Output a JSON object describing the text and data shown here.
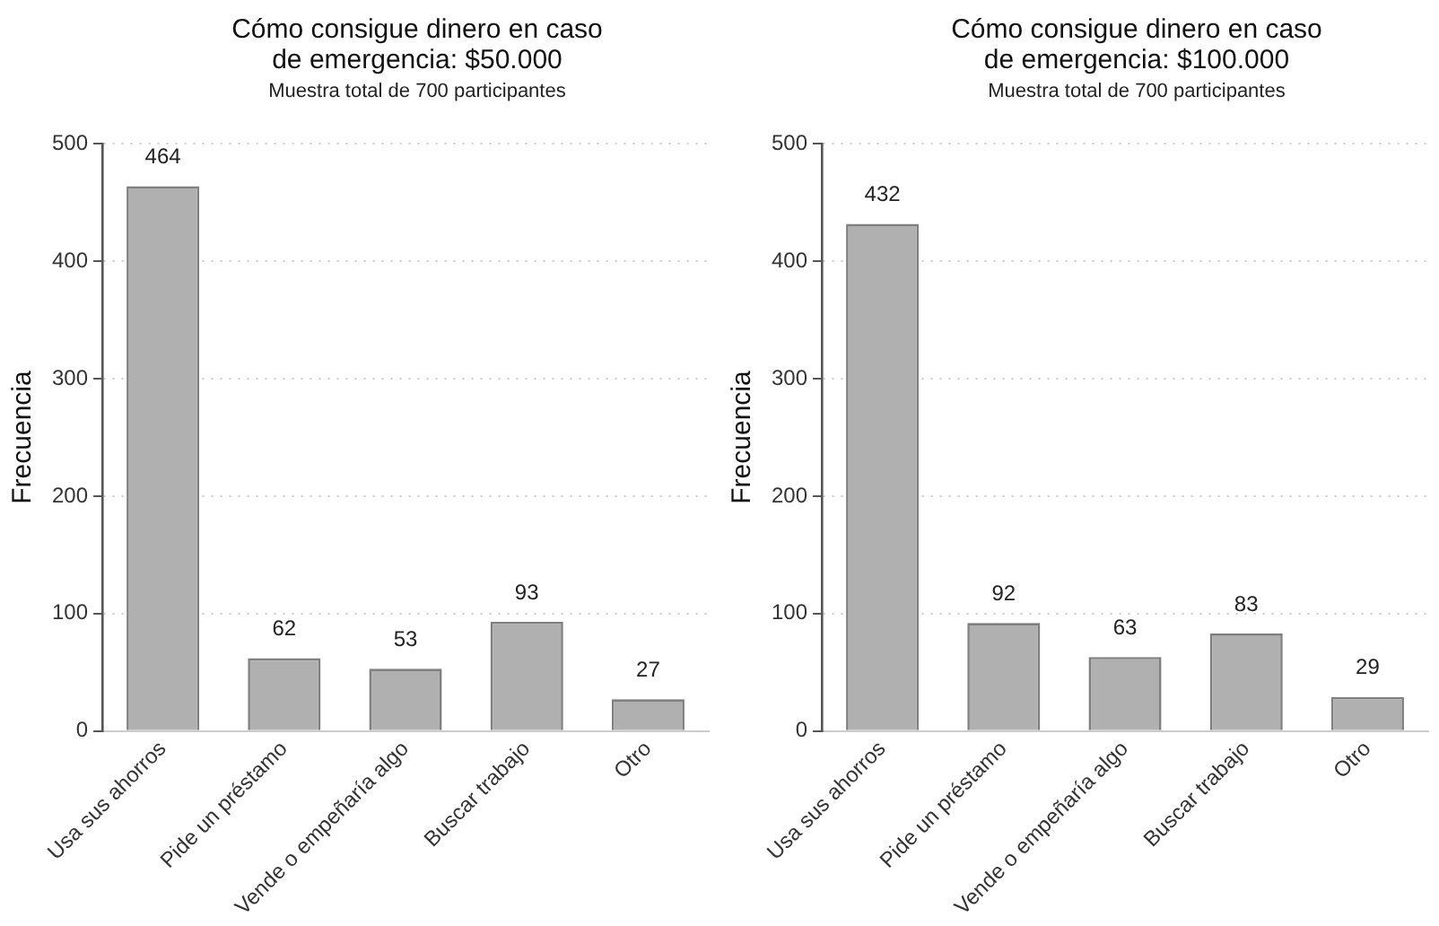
{
  "chart_data": [
    {
      "type": "bar",
      "title": "Cómo consigue dinero en caso de emergencia: $50.000",
      "subtitle": "Muestra total de 700 participantes",
      "ylabel": "Frecuencia",
      "categories": [
        "Usa sus ahorros",
        "Pide un préstamo",
        "Vende o empeñaría algo",
        "Buscar trabajo",
        "Otro"
      ],
      "values": [
        464,
        62,
        53,
        93,
        27
      ],
      "color": "#b0b0b0",
      "ylim": [
        0,
        500
      ],
      "yticks": [
        0,
        100,
        200,
        300,
        400,
        500
      ],
      "grid": "y",
      "data_labels": true,
      "legend": false
    },
    {
      "type": "bar",
      "title": "Cómo consigue dinero en caso de emergencia: $100.000",
      "subtitle": "Muestra total de 700 participantes",
      "ylabel": "Frecuencia",
      "categories": [
        "Usa sus ahorros",
        "Pide un préstamo",
        "Vende o empeñaría algo",
        "Buscar trabajo",
        "Otro"
      ],
      "values": [
        432,
        92,
        63,
        83,
        29
      ],
      "color": "#b0b0b0",
      "ylim": [
        0,
        500
      ],
      "yticks": [
        0,
        100,
        200,
        300,
        400,
        500
      ],
      "grid": "y",
      "data_labels": true,
      "legend": false
    }
  ]
}
